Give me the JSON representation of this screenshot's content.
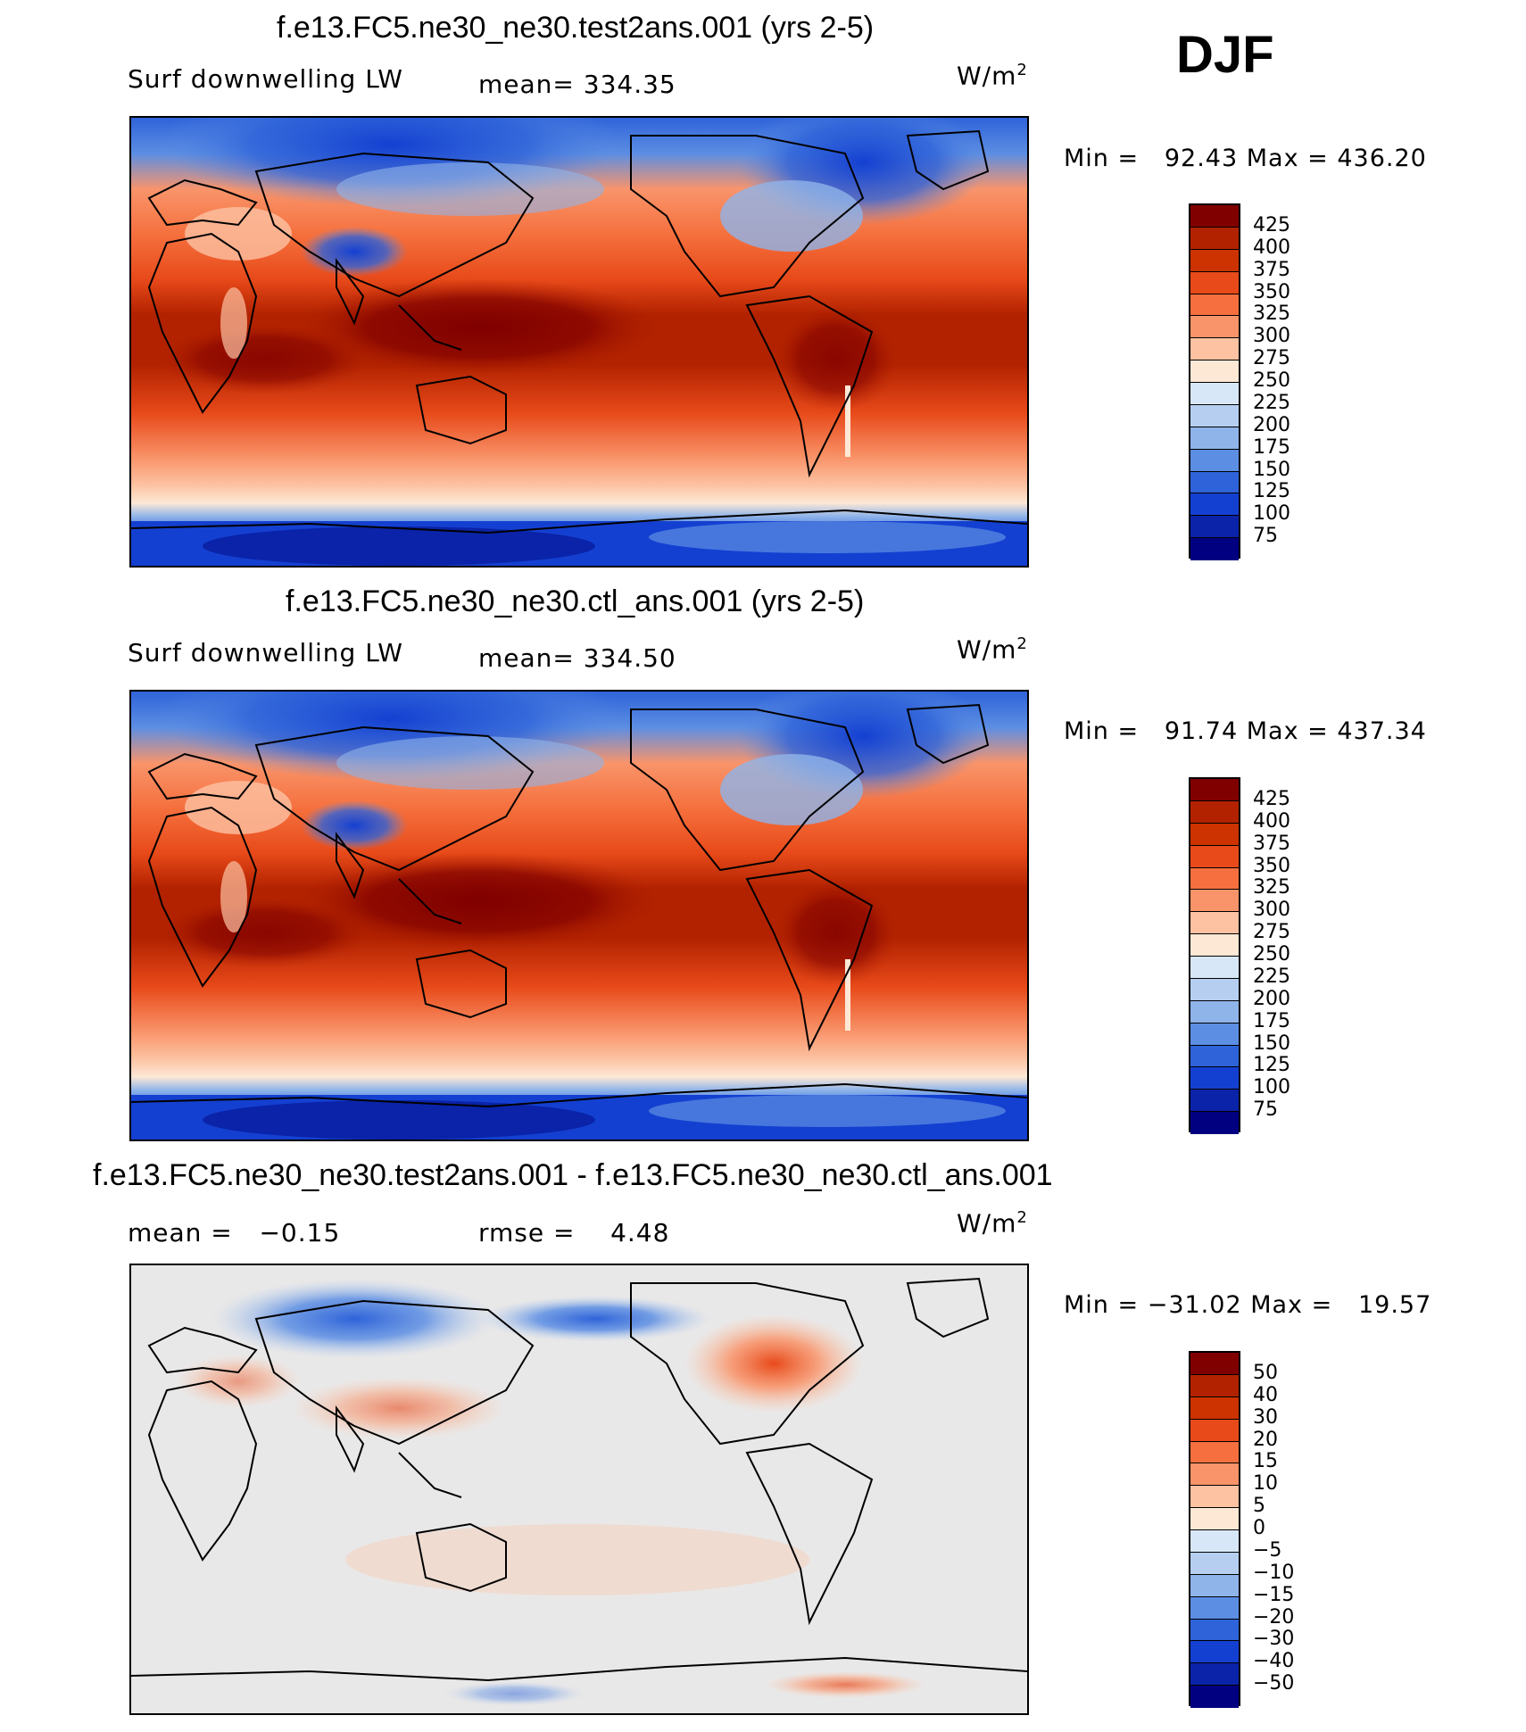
{
  "season": "DJF",
  "panels": [
    {
      "title": "f.e13.FC5.ne30_ne30.test2ans.001 (yrs 2-5)",
      "left_label": "Surf downwelling LW",
      "mid_label": "mean= 334.35",
      "units": "W/m",
      "units_sup": "2",
      "minmax": "Min =   92.43 Max = 436.20",
      "kind": "absolute",
      "colorbar_labels": [
        "425",
        "400",
        "375",
        "350",
        "325",
        "300",
        "275",
        "250",
        "225",
        "200",
        "175",
        "150",
        "125",
        "100",
        "75"
      ]
    },
    {
      "title": "f.e13.FC5.ne30_ne30.ctl_ans.001 (yrs 2-5)",
      "left_label": "Surf downwelling LW",
      "mid_label": "mean= 334.50",
      "units": "W/m",
      "units_sup": "2",
      "minmax": "Min =   91.74 Max = 437.34",
      "kind": "absolute",
      "colorbar_labels": [
        "425",
        "400",
        "375",
        "350",
        "325",
        "300",
        "275",
        "250",
        "225",
        "200",
        "175",
        "150",
        "125",
        "100",
        "75"
      ]
    },
    {
      "title": "f.e13.FC5.ne30_ne30.test2ans.001 - f.e13.FC5.ne30_ne30.ctl_ans.001",
      "left_label": "mean =   −0.15",
      "mid_label": "rmse =    4.48",
      "units": "W/m",
      "units_sup": "2",
      "minmax": "Min = −31.02 Max =   19.57",
      "kind": "difference",
      "colorbar_labels": [
        "50",
        "40",
        "30",
        "20",
        "15",
        "10",
        "5",
        "0",
        "−5",
        "−10",
        "−15",
        "−20",
        "−30",
        "−40",
        "−50"
      ]
    }
  ],
  "colors": {
    "absolute_scale": [
      "#800000",
      "#b22200",
      "#cc3300",
      "#e84a1a",
      "#f5703e",
      "#f9946a",
      "#fcc2a2",
      "#fde8d6",
      "#d8e7f7",
      "#b6cff0",
      "#8fb4ea",
      "#5c8ee3",
      "#2f63d9",
      "#1440d1",
      "#0a23a8",
      "#000080"
    ],
    "difference_scale": [
      "#800000",
      "#b22200",
      "#cc3300",
      "#e84a1a",
      "#f5703e",
      "#f9946a",
      "#fcc2a2",
      "#fde8d6",
      "#d8e7f7",
      "#b6cff0",
      "#8fb4ea",
      "#5c8ee3",
      "#2f63d9",
      "#1440d1",
      "#0a23a8",
      "#000080"
    ]
  }
}
